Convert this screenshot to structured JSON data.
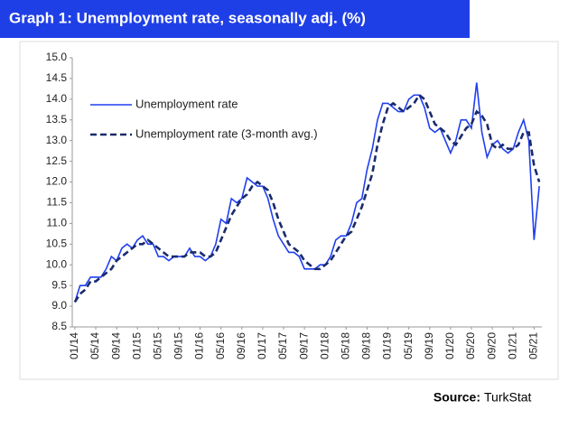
{
  "chart_data": {
    "type": "line",
    "title": "Graph 1: Unemployment rate, seasonally adj. (%)",
    "source_label": "Source:",
    "source": "TurkStat",
    "categories": [
      "01/14",
      null,
      null,
      null,
      "05/14",
      null,
      null,
      null,
      "09/14",
      null,
      null,
      null,
      "01/15",
      null,
      null,
      null,
      "05/15",
      null,
      null,
      null,
      "09/15",
      null,
      null,
      null,
      "01/16",
      null,
      null,
      null,
      "05/16",
      null,
      null,
      null,
      "09/16",
      null,
      null,
      null,
      "01/17",
      null,
      null,
      null,
      "05/17",
      null,
      null,
      null,
      "09/17",
      null,
      null,
      null,
      "01/18",
      null,
      null,
      null,
      "05/18",
      null,
      null,
      null,
      "09/18",
      null,
      null,
      null,
      "01/19",
      null,
      null,
      null,
      "05/19",
      null,
      null,
      null,
      "09/19",
      null,
      null,
      null,
      "01/20",
      null,
      null,
      null,
      "05/20",
      null,
      null,
      null,
      "09/20",
      null,
      null,
      null,
      "01/21",
      null,
      null,
      null,
      "05/21",
      null
    ],
    "series": [
      {
        "name": "Unemployment rate",
        "color": "#1f3ff0",
        "dashed": false,
        "values": [
          9.1,
          9.5,
          9.5,
          9.7,
          9.7,
          9.7,
          9.9,
          10.2,
          10.1,
          10.4,
          10.5,
          10.4,
          10.6,
          10.7,
          10.5,
          10.5,
          10.2,
          10.2,
          10.1,
          10.2,
          10.2,
          10.2,
          10.4,
          10.2,
          10.2,
          10.1,
          10.2,
          10.5,
          11.1,
          11.0,
          11.6,
          11.5,
          11.6,
          12.1,
          12.0,
          11.9,
          11.9,
          11.6,
          11.1,
          10.7,
          10.5,
          10.3,
          10.3,
          10.2,
          9.9,
          9.9,
          9.9,
          10.0,
          10.0,
          10.2,
          10.6,
          10.7,
          10.7,
          11.0,
          11.5,
          11.6,
          12.3,
          12.8,
          13.5,
          13.9,
          13.9,
          13.8,
          13.7,
          13.7,
          14.0,
          14.1,
          14.1,
          13.8,
          13.3,
          13.2,
          13.3,
          13.0,
          12.7,
          13.0,
          13.5,
          13.5,
          13.3,
          14.4,
          13.2,
          12.6,
          12.9,
          13.0,
          12.8,
          12.7,
          12.8,
          13.2,
          13.5,
          13.0,
          10.6,
          11.9
        ]
      },
      {
        "name": "Unemployment rate (3-month avg.)",
        "color": "#1a2a6c",
        "dashed": true,
        "values": [
          9.1,
          9.3,
          9.4,
          9.6,
          9.6,
          9.7,
          9.8,
          9.9,
          10.1,
          10.2,
          10.3,
          10.4,
          10.5,
          10.5,
          10.6,
          10.5,
          10.4,
          10.3,
          10.2,
          10.2,
          10.2,
          10.2,
          10.3,
          10.3,
          10.3,
          10.2,
          10.2,
          10.3,
          10.6,
          10.9,
          11.2,
          11.4,
          11.6,
          11.7,
          11.9,
          12.0,
          11.9,
          11.8,
          11.5,
          11.1,
          10.8,
          10.5,
          10.4,
          10.3,
          10.1,
          10.0,
          9.9,
          9.9,
          10.0,
          10.1,
          10.3,
          10.5,
          10.7,
          10.8,
          11.1,
          11.4,
          11.8,
          12.2,
          12.9,
          13.4,
          13.8,
          13.9,
          13.8,
          13.7,
          13.8,
          13.9,
          14.1,
          14.0,
          13.7,
          13.4,
          13.3,
          13.2,
          13.0,
          12.9,
          13.1,
          13.3,
          13.4,
          13.7,
          13.6,
          13.4,
          12.9,
          12.8,
          12.9,
          12.8,
          12.8,
          12.9,
          13.2,
          13.2,
          12.4,
          12.0
        ]
      }
    ],
    "ylim": [
      8.5,
      15
    ],
    "yticks": [
      8.5,
      {
        "value": 9,
        "label": "9.0"
      },
      9.5,
      {
        "value": 10,
        "label": "10.0"
      },
      10.5,
      {
        "value": 11,
        "label": "11.0"
      },
      11.5,
      {
        "value": 12,
        "label": "12.0"
      },
      12.5,
      {
        "value": 13,
        "label": "13.0"
      },
      13.5,
      {
        "value": 14,
        "label": "14.0"
      },
      14.5,
      {
        "value": 15,
        "label": "15.0"
      }
    ],
    "grid": false,
    "legend": "upper left"
  }
}
